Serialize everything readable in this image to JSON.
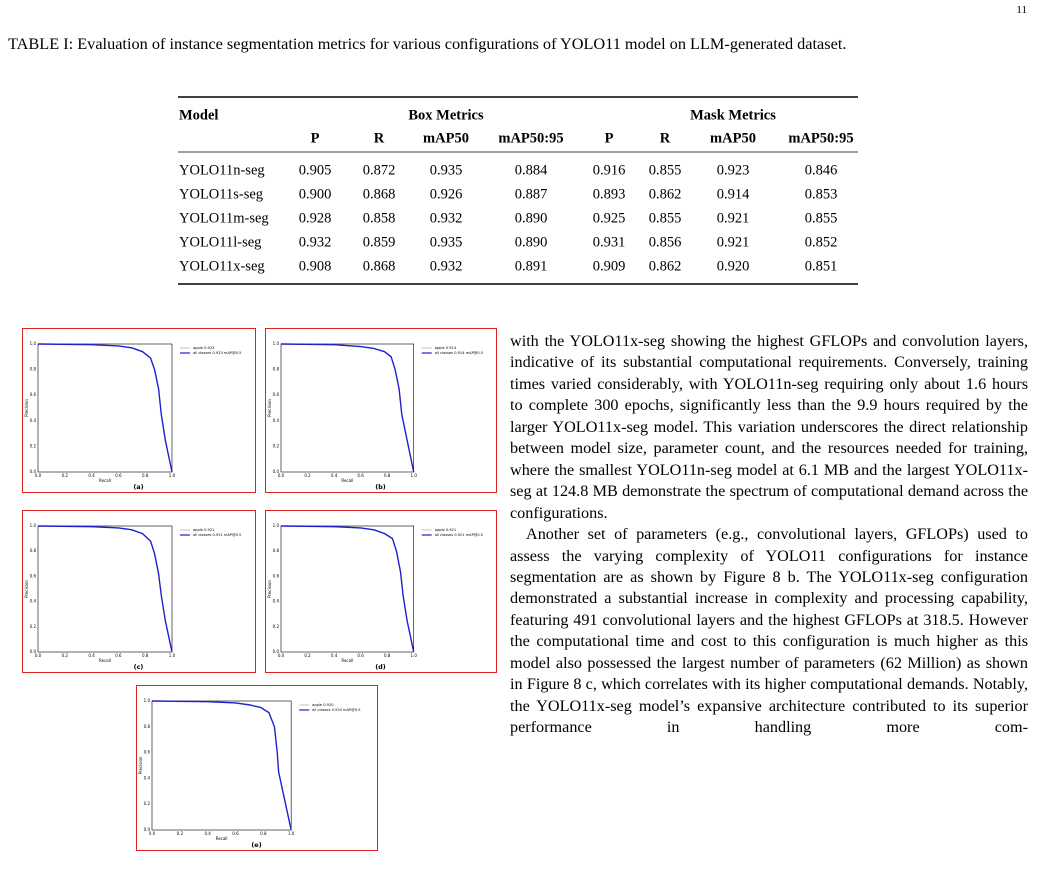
{
  "page_number": "11",
  "table": {
    "caption": "TABLE I: Evaluation of instance segmentation metrics for various configurations of YOLO11 model on LLM-generated dataset.",
    "group_headers": [
      "Model",
      "Box Metrics",
      "Mask Metrics"
    ],
    "sub_headers": [
      "P",
      "R",
      "mAP50",
      "mAP50:95",
      "P",
      "R",
      "mAP50",
      "mAP50:95"
    ],
    "rows": [
      [
        "YOLO11n-seg",
        "0.905",
        "0.872",
        "0.935",
        "0.884",
        "0.916",
        "0.855",
        "0.923",
        "0.846"
      ],
      [
        "YOLO11s-seg",
        "0.900",
        "0.868",
        "0.926",
        "0.887",
        "0.893",
        "0.862",
        "0.914",
        "0.853"
      ],
      [
        "YOLO11m-seg",
        "0.928",
        "0.858",
        "0.932",
        "0.890",
        "0.925",
        "0.855",
        "0.921",
        "0.855"
      ],
      [
        "YOLO11l-seg",
        "0.932",
        "0.859",
        "0.935",
        "0.890",
        "0.931",
        "0.856",
        "0.921",
        "0.852"
      ],
      [
        "YOLO11x-seg",
        "0.908",
        "0.868",
        "0.932",
        "0.891",
        "0.909",
        "0.862",
        "0.920",
        "0.851"
      ]
    ]
  },
  "figure": {
    "ticks": [
      "0.0",
      "0.2",
      "0.4",
      "0.6",
      "0.8",
      "1.0"
    ],
    "x_label": "Recall",
    "y_label": "Precision",
    "panels": [
      {
        "label": "(a)",
        "legend": [
          "apple 0.923",
          "all classes 0.923 mAP@0.5"
        ],
        "recall": [
          0,
          0.4,
          0.6,
          0.7,
          0.78,
          0.84,
          0.87,
          0.9,
          0.92,
          0.95,
          1.0
        ],
        "precision": [
          1.0,
          0.995,
          0.985,
          0.97,
          0.94,
          0.89,
          0.8,
          0.65,
          0.45,
          0.25,
          0.0
        ]
      },
      {
        "label": "(b)",
        "legend": [
          "apple 0.914",
          "all classes 0.914 mAP@0.5"
        ],
        "recall": [
          0,
          0.4,
          0.6,
          0.7,
          0.78,
          0.83,
          0.86,
          0.89,
          0.91,
          0.95,
          1.0
        ],
        "precision": [
          1.0,
          0.995,
          0.98,
          0.965,
          0.94,
          0.9,
          0.8,
          0.65,
          0.45,
          0.25,
          0.0
        ]
      },
      {
        "label": "(c)",
        "legend": [
          "apple 0.921",
          "all classes 0.921 mAP@0.5"
        ],
        "recall": [
          0,
          0.4,
          0.6,
          0.7,
          0.78,
          0.84,
          0.87,
          0.9,
          0.92,
          0.95,
          1.0
        ],
        "precision": [
          1.0,
          0.995,
          0.985,
          0.97,
          0.94,
          0.88,
          0.78,
          0.62,
          0.45,
          0.25,
          0.0
        ]
      },
      {
        "label": "(d)",
        "legend": [
          "apple 0.921",
          "all classes 0.921 mAP@0.5"
        ],
        "recall": [
          0,
          0.4,
          0.6,
          0.7,
          0.78,
          0.84,
          0.87,
          0.9,
          0.92,
          0.95,
          1.0
        ],
        "precision": [
          1.0,
          0.995,
          0.985,
          0.97,
          0.94,
          0.9,
          0.8,
          0.64,
          0.45,
          0.25,
          0.0
        ]
      },
      {
        "label": "(e)",
        "legend": [
          "apple 0.920",
          "all classes 0.920 mAP@0.5"
        ],
        "recall": [
          0,
          0.4,
          0.6,
          0.7,
          0.78,
          0.84,
          0.88,
          0.9,
          0.91,
          0.95,
          1.0
        ],
        "precision": [
          1.0,
          0.995,
          0.985,
          0.97,
          0.95,
          0.91,
          0.8,
          0.6,
          0.45,
          0.25,
          0.0
        ]
      }
    ]
  },
  "body": {
    "paragraphs": [
      "with the YOLO11x-seg showing the highest GFLOPs and convolution layers, indicative of its substantial computational requirements. Conversely, training times varied considerably, with YOLO11n-seg requiring only about 1.6 hours to complete 300 epochs, significantly less than the 9.9 hours required by the larger YOLO11x-seg model. This variation underscores the direct relationship between model size, parameter count, and the resources needed for training, where the smallest YOLO11n-seg model at 6.1 MB and the largest YOLO11x-seg at 124.8 MB demonstrate the spectrum of computational demand across the configurations.",
      "Another set of parameters (e.g., convolutional layers, GFLOPs) used to assess the varying complexity of YOLO11 configurations for instance segmentation are as shown by Figure 8 b. The YOLO11x-seg configuration demonstrated a substantial increase in complexity and processing capability, featuring 491 convolutional layers and the highest GFLOPs at 318.5. However the computational time and cost to this configuration is much higher as this model also possessed the largest number of parameters (62 Million) as shown in Figure 8 c, which correlates with its higher computational demands. Notably, the YOLO11x-seg model’s expansive architecture contributed to its superior performance in handling more com-"
    ]
  }
}
